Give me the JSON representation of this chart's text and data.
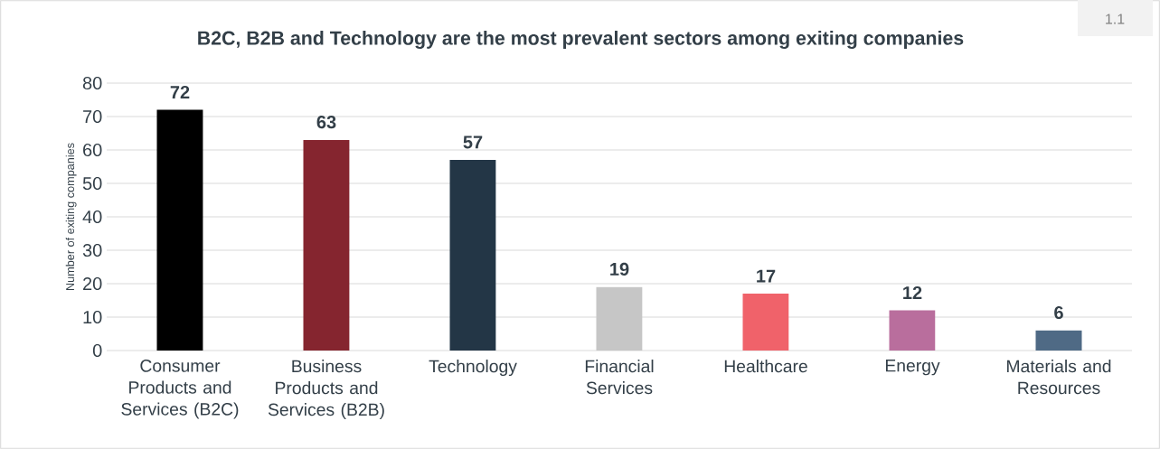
{
  "chart_data": {
    "type": "bar",
    "title": "B2C, B2B and Technology are the most prevalent sectors among exiting companies",
    "ylabel": "Number of exiting companies",
    "categories": [
      "Consumer Products and Services (B2C)",
      "Business Products and Services (B2B)",
      "Technology",
      "Financial Services",
      "Healthcare",
      "Energy",
      "Materials and Resources"
    ],
    "values": [
      72,
      63,
      57,
      19,
      17,
      12,
      6
    ],
    "colors": [
      "#000000",
      "#85252f",
      "#233646",
      "#c6c6c6",
      "#f0626a",
      "#b96e9d",
      "#4f6a85"
    ],
    "ylim": [
      0,
      80
    ],
    "yticks": [
      0,
      10,
      20,
      30,
      40,
      50,
      60,
      70,
      80
    ],
    "grid": "y",
    "data_labels": true,
    "annotations": [
      "1.1"
    ]
  }
}
